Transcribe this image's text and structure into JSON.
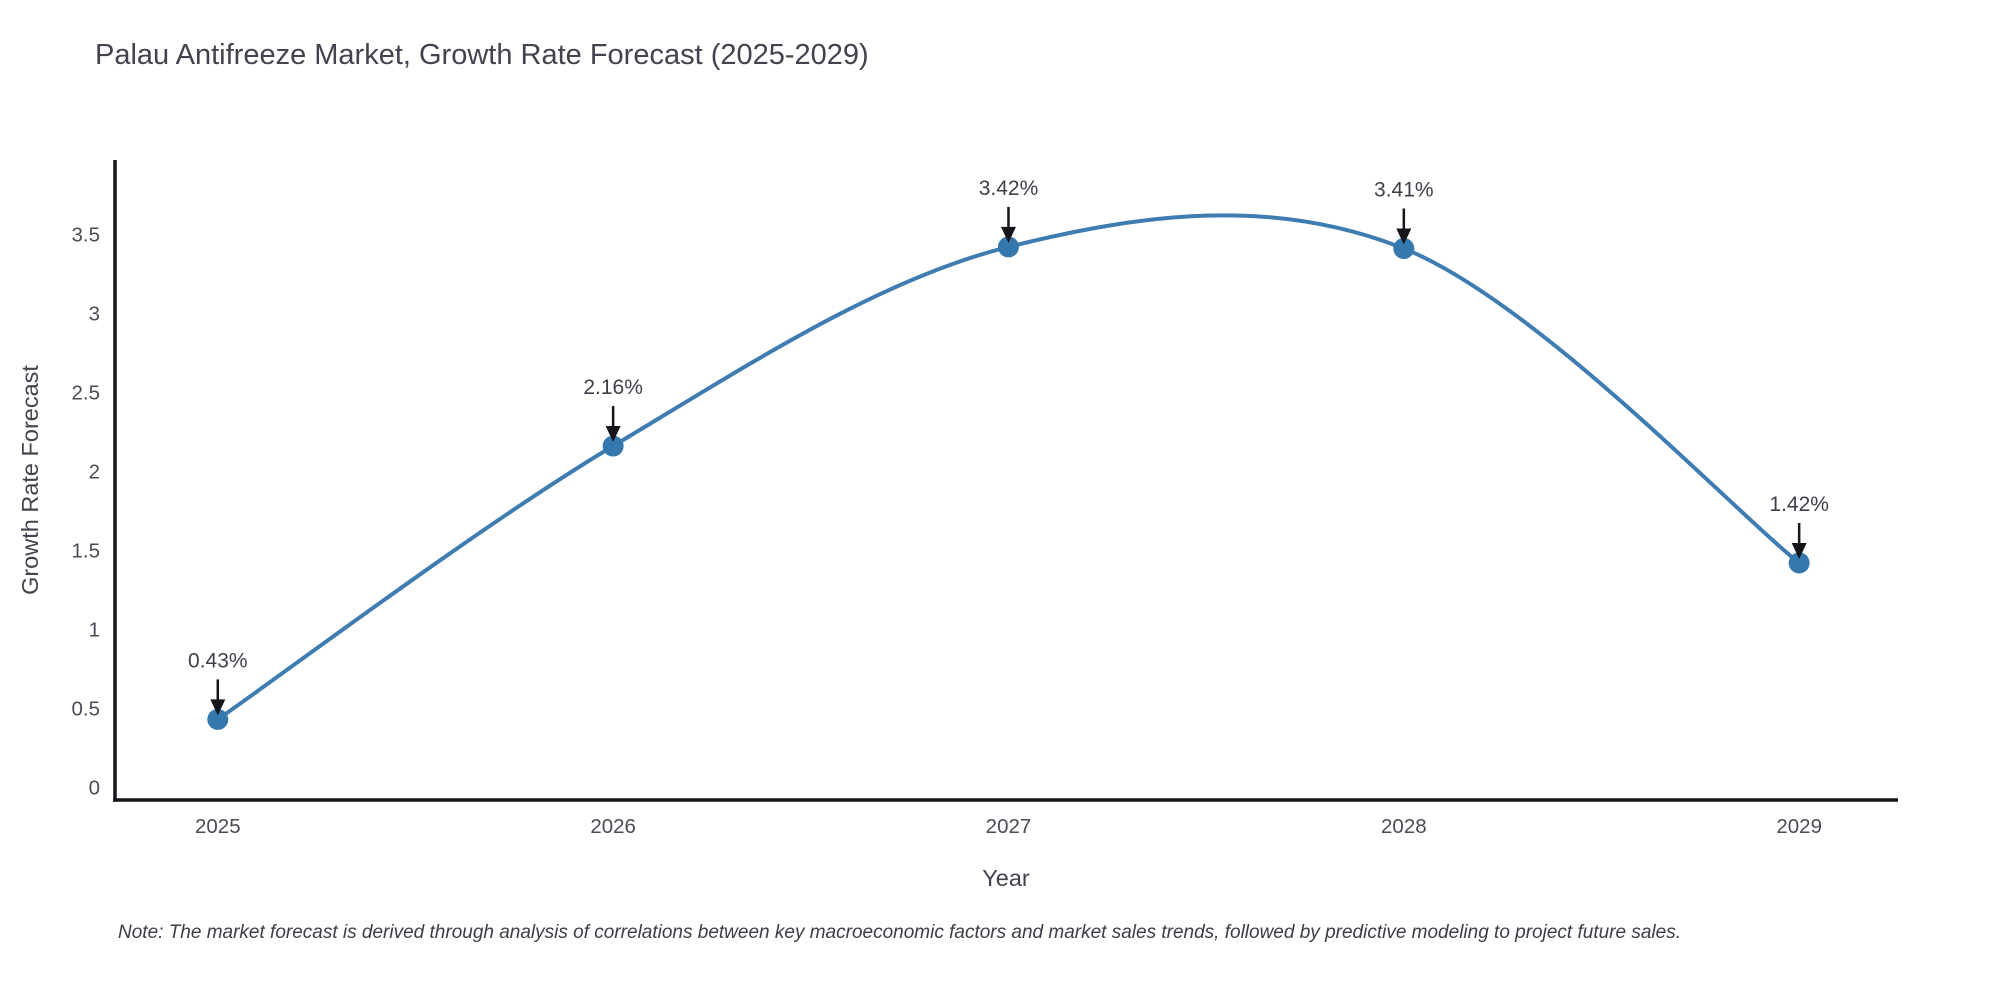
{
  "page": {
    "background": "#ffffff"
  },
  "note": "Note: The market forecast is derived through analysis of correlations between key macroeconomic factors and market sales trends, followed by predictive modeling to project future sales.",
  "chart_data": {
    "type": "line",
    "title": "Palau Antifreeze Market, Growth Rate Forecast (2025-2029)",
    "xlabel": "Year",
    "ylabel": "Growth Rate Forecast",
    "x": [
      2025,
      2026,
      2027,
      2028,
      2029
    ],
    "series": [
      {
        "name": "Growth Rate Forecast",
        "values": [
          0.43,
          2.16,
          3.42,
          3.41,
          1.42
        ]
      }
    ],
    "point_labels": [
      "0.43%",
      "2.16%",
      "3.42%",
      "3.41%",
      "1.42%"
    ],
    "x_tick_labels": [
      "2025",
      "2026",
      "2027",
      "2028",
      "2029"
    ],
    "y_tick_values": [
      0,
      0.5,
      1,
      1.5,
      2,
      2.5,
      3,
      3.5
    ],
    "y_tick_labels": [
      "0",
      "0.5",
      "1",
      "1.5",
      "2",
      "2.5",
      "3",
      "3.5"
    ],
    "xlim": [
      2024.74,
      2029.25
    ],
    "ylim": [
      -0.08,
      3.97
    ],
    "grid": false,
    "legend": "none",
    "curve": "smooth-spline",
    "marker_radius": 10.5,
    "line_width": 4,
    "colors": {
      "line": "#3e7cb1",
      "marker": "#3578ae",
      "axis": "#15151a",
      "arrow": "#15151a",
      "title_text": "#42434e",
      "tick_text": "#4b4c56",
      "annotation_text": "#3e3f49",
      "note_text": "#3c3d47"
    }
  }
}
